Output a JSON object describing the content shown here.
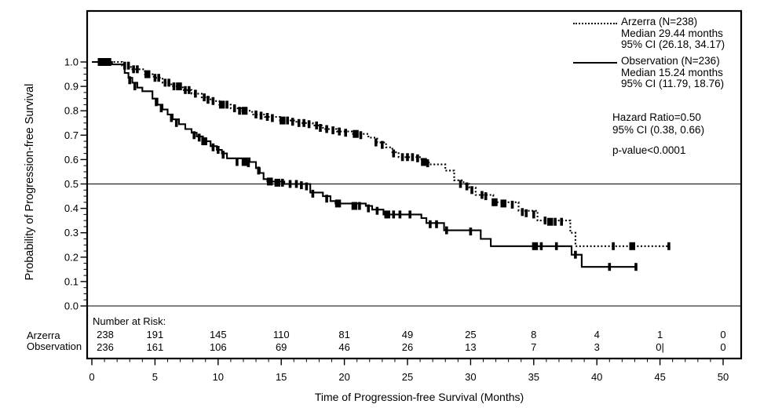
{
  "colors": {
    "foreground": "#000000",
    "background": "#ffffff"
  },
  "y_axis": {
    "label": "Probability of Progression-free Survival",
    "tick_labels": [
      "1.0",
      "0.9",
      "0.8",
      "0.7",
      "0.6",
      "0.5",
      "0.4",
      "0.3",
      "0.2",
      "0.1",
      "0.0"
    ],
    "tick_values": [
      1.0,
      0.9,
      0.8,
      0.7,
      0.6,
      0.5,
      0.4,
      0.3,
      0.2,
      0.1,
      0.0
    ]
  },
  "x_axis": {
    "label": "Time of Progression-free Survival (Months)",
    "tick_labels": [
      "0",
      "5",
      "10",
      "15",
      "20",
      "25",
      "30",
      "35",
      "40",
      "45",
      "50"
    ],
    "tick_values": [
      0,
      5,
      10,
      15,
      20,
      25,
      30,
      35,
      40,
      45,
      50
    ]
  },
  "legend": [
    {
      "name": "Arzerra (N=238)",
      "median": "Median 29.44 months",
      "ci": "95% CI (26.18, 34.17)",
      "line_style": "dotted"
    },
    {
      "name": "Observation (N=236)",
      "median": "Median 15.24 months",
      "ci": "95% CI (11.79, 18.76)",
      "line_style": "solid"
    }
  ],
  "stats": {
    "hazard_ratio": "Hazard Ratio=0.50",
    "ci": "95% CI (0.38, 0.66)",
    "p_value": "p-value<0.0001"
  },
  "number_at_risk": {
    "header": "Number at Risk:",
    "months": [
      0,
      5,
      10,
      15,
      20,
      25,
      30,
      35,
      40,
      45,
      50
    ],
    "rows": [
      {
        "label": "Arzerra",
        "counts": [
          "238",
          "191",
          "145",
          "110",
          "81",
          "49",
          "25",
          "8",
          "4",
          "1",
          "0"
        ]
      },
      {
        "label": "Observation",
        "counts": [
          "236",
          "161",
          "106",
          "69",
          "46",
          "26",
          "13",
          "7",
          "3",
          "0|",
          "0"
        ]
      }
    ]
  },
  "chart_data": {
    "type": "line",
    "subtype": "kaplan-meier-step",
    "title": "",
    "xlabel": "Time of Progression-free Survival (Months)",
    "ylabel": "Probability of Progression-free Survival",
    "xlim": [
      0,
      50
    ],
    "ylim": [
      0.0,
      1.0
    ],
    "reference_line_y": 0.5,
    "grid": false,
    "legend_position": "top-right",
    "series": [
      {
        "name": "Arzerra (N=238)",
        "style": "dotted",
        "median_months": 29.44,
        "ci95": [
          26.18,
          34.17
        ],
        "steps": [
          [
            0,
            1.0
          ],
          [
            2.4,
            0.985
          ],
          [
            3.1,
            0.97
          ],
          [
            4.2,
            0.95
          ],
          [
            4.9,
            0.935
          ],
          [
            5.6,
            0.915
          ],
          [
            6.3,
            0.9
          ],
          [
            7.2,
            0.885
          ],
          [
            7.9,
            0.87
          ],
          [
            8.7,
            0.855
          ],
          [
            9.4,
            0.84
          ],
          [
            10.1,
            0.825
          ],
          [
            11.0,
            0.81
          ],
          [
            11.9,
            0.8
          ],
          [
            12.7,
            0.785
          ],
          [
            13.7,
            0.775
          ],
          [
            14.9,
            0.76
          ],
          [
            16.2,
            0.75
          ],
          [
            17.5,
            0.74
          ],
          [
            18.3,
            0.725
          ],
          [
            19.4,
            0.715
          ],
          [
            20.6,
            0.705
          ],
          [
            21.9,
            0.69
          ],
          [
            22.6,
            0.67
          ],
          [
            23.3,
            0.65
          ],
          [
            23.8,
            0.63
          ],
          [
            24.3,
            0.61
          ],
          [
            26.1,
            0.595
          ],
          [
            26.7,
            0.58
          ],
          [
            28.0,
            0.555
          ],
          [
            28.7,
            0.515
          ],
          [
            29.44,
            0.5
          ],
          [
            29.9,
            0.485
          ],
          [
            30.4,
            0.455
          ],
          [
            31.8,
            0.425
          ],
          [
            33.8,
            0.39
          ],
          [
            35.3,
            0.35
          ],
          [
            37.9,
            0.3
          ],
          [
            38.3,
            0.245
          ],
          [
            45.7,
            0.245
          ]
        ],
        "censors": [
          [
            0.7,
            1.0,
            1
          ],
          [
            1.0,
            1.0
          ],
          [
            1.3,
            1.0,
            1
          ],
          [
            2.6,
            0.985
          ],
          [
            2.9,
            0.985
          ],
          [
            3.3,
            0.97
          ],
          [
            3.6,
            0.97
          ],
          [
            4.4,
            0.95,
            1
          ],
          [
            5.0,
            0.935
          ],
          [
            5.3,
            0.935
          ],
          [
            5.8,
            0.915
          ],
          [
            6.1,
            0.915
          ],
          [
            6.5,
            0.9
          ],
          [
            6.9,
            0.9,
            1
          ],
          [
            7.4,
            0.885
          ],
          [
            7.7,
            0.885
          ],
          [
            8.2,
            0.87
          ],
          [
            8.9,
            0.855
          ],
          [
            9.2,
            0.845
          ],
          [
            9.6,
            0.84
          ],
          [
            10.3,
            0.825,
            1
          ],
          [
            10.7,
            0.825
          ],
          [
            11.3,
            0.81
          ],
          [
            11.7,
            0.8
          ],
          [
            12.1,
            0.8,
            1
          ],
          [
            13.0,
            0.785
          ],
          [
            13.4,
            0.78
          ],
          [
            13.9,
            0.775
          ],
          [
            14.3,
            0.77
          ],
          [
            15.1,
            0.76,
            1
          ],
          [
            15.5,
            0.76
          ],
          [
            15.9,
            0.755
          ],
          [
            16.4,
            0.75
          ],
          [
            16.8,
            0.75
          ],
          [
            17.2,
            0.745
          ],
          [
            17.8,
            0.74
          ],
          [
            18.1,
            0.73
          ],
          [
            18.6,
            0.725
          ],
          [
            19.1,
            0.72
          ],
          [
            19.6,
            0.715
          ],
          [
            20.1,
            0.71
          ],
          [
            20.9,
            0.705,
            1
          ],
          [
            21.3,
            0.7
          ],
          [
            22.5,
            0.67
          ],
          [
            23.0,
            0.66
          ],
          [
            23.9,
            0.625
          ],
          [
            24.6,
            0.61
          ],
          [
            25.0,
            0.61
          ],
          [
            25.4,
            0.61
          ],
          [
            25.8,
            0.605
          ],
          [
            26.3,
            0.59,
            1
          ],
          [
            26.6,
            0.585
          ],
          [
            29.2,
            0.5
          ],
          [
            29.7,
            0.49
          ],
          [
            30.1,
            0.475
          ],
          [
            30.9,
            0.455
          ],
          [
            31.2,
            0.45
          ],
          [
            31.9,
            0.425,
            1
          ],
          [
            32.6,
            0.42,
            1
          ],
          [
            33.3,
            0.415
          ],
          [
            34.1,
            0.385
          ],
          [
            34.4,
            0.38
          ],
          [
            35.0,
            0.375
          ],
          [
            35.9,
            0.35
          ],
          [
            36.3,
            0.345,
            1
          ],
          [
            36.7,
            0.345
          ],
          [
            37.2,
            0.345
          ],
          [
            41.3,
            0.245
          ],
          [
            42.8,
            0.245,
            1
          ],
          [
            45.7,
            0.245
          ]
        ]
      },
      {
        "name": "Observation (N=236)",
        "style": "solid",
        "median_months": 15.24,
        "ci95": [
          11.79,
          18.76
        ],
        "steps": [
          [
            0,
            1.0
          ],
          [
            1.6,
            0.99
          ],
          [
            2.6,
            0.955
          ],
          [
            2.9,
            0.935
          ],
          [
            3.2,
            0.915
          ],
          [
            3.6,
            0.895
          ],
          [
            4.0,
            0.88
          ],
          [
            4.8,
            0.85
          ],
          [
            5.2,
            0.825
          ],
          [
            5.6,
            0.805
          ],
          [
            6.0,
            0.785
          ],
          [
            6.4,
            0.765
          ],
          [
            6.9,
            0.745
          ],
          [
            7.4,
            0.725
          ],
          [
            7.9,
            0.71
          ],
          [
            8.3,
            0.695
          ],
          [
            8.8,
            0.675
          ],
          [
            9.4,
            0.655
          ],
          [
            9.9,
            0.64
          ],
          [
            10.3,
            0.625
          ],
          [
            10.7,
            0.605
          ],
          [
            12.5,
            0.59
          ],
          [
            13.0,
            0.565
          ],
          [
            13.3,
            0.545
          ],
          [
            13.6,
            0.52
          ],
          [
            13.9,
            0.51
          ],
          [
            15.24,
            0.5
          ],
          [
            17.3,
            0.465
          ],
          [
            18.3,
            0.45
          ],
          [
            18.9,
            0.43
          ],
          [
            19.3,
            0.42
          ],
          [
            21.7,
            0.41
          ],
          [
            22.2,
            0.395
          ],
          [
            23.1,
            0.375
          ],
          [
            26.1,
            0.36
          ],
          [
            26.5,
            0.34
          ],
          [
            27.9,
            0.31
          ],
          [
            30.8,
            0.275
          ],
          [
            31.6,
            0.245
          ],
          [
            38.0,
            0.21
          ],
          [
            38.8,
            0.16
          ],
          [
            43.1,
            0.16
          ]
        ],
        "censors": [
          [
            0.9,
            1.0,
            1
          ],
          [
            1.2,
            1.0
          ],
          [
            3.0,
            0.925
          ],
          [
            3.4,
            0.9
          ],
          [
            5.1,
            0.835
          ],
          [
            5.5,
            0.81
          ],
          [
            6.3,
            0.77
          ],
          [
            6.7,
            0.75
          ],
          [
            8.1,
            0.7
          ],
          [
            8.5,
            0.69
          ],
          [
            8.9,
            0.675,
            1
          ],
          [
            9.6,
            0.65
          ],
          [
            10.0,
            0.64
          ],
          [
            10.4,
            0.62
          ],
          [
            11.5,
            0.59
          ],
          [
            12.1,
            0.59,
            1
          ],
          [
            12.4,
            0.585
          ],
          [
            13.2,
            0.555
          ],
          [
            14.1,
            0.51,
            1
          ],
          [
            14.7,
            0.505,
            1
          ],
          [
            15.1,
            0.505
          ],
          [
            15.7,
            0.5
          ],
          [
            16.2,
            0.5
          ],
          [
            16.6,
            0.495
          ],
          [
            17.0,
            0.49
          ],
          [
            17.5,
            0.46
          ],
          [
            18.6,
            0.44
          ],
          [
            19.5,
            0.42,
            1
          ],
          [
            20.8,
            0.41,
            1
          ],
          [
            21.2,
            0.41
          ],
          [
            21.9,
            0.4
          ],
          [
            22.6,
            0.39
          ],
          [
            23.4,
            0.375,
            1
          ],
          [
            23.9,
            0.375
          ],
          [
            24.4,
            0.375
          ],
          [
            25.2,
            0.375
          ],
          [
            26.8,
            0.335
          ],
          [
            27.3,
            0.335
          ],
          [
            28.1,
            0.31
          ],
          [
            30.0,
            0.305
          ],
          [
            35.1,
            0.245,
            1
          ],
          [
            35.6,
            0.245
          ],
          [
            36.8,
            0.245
          ],
          [
            38.3,
            0.21
          ],
          [
            41.0,
            0.16
          ],
          [
            43.1,
            0.16
          ]
        ]
      }
    ]
  }
}
